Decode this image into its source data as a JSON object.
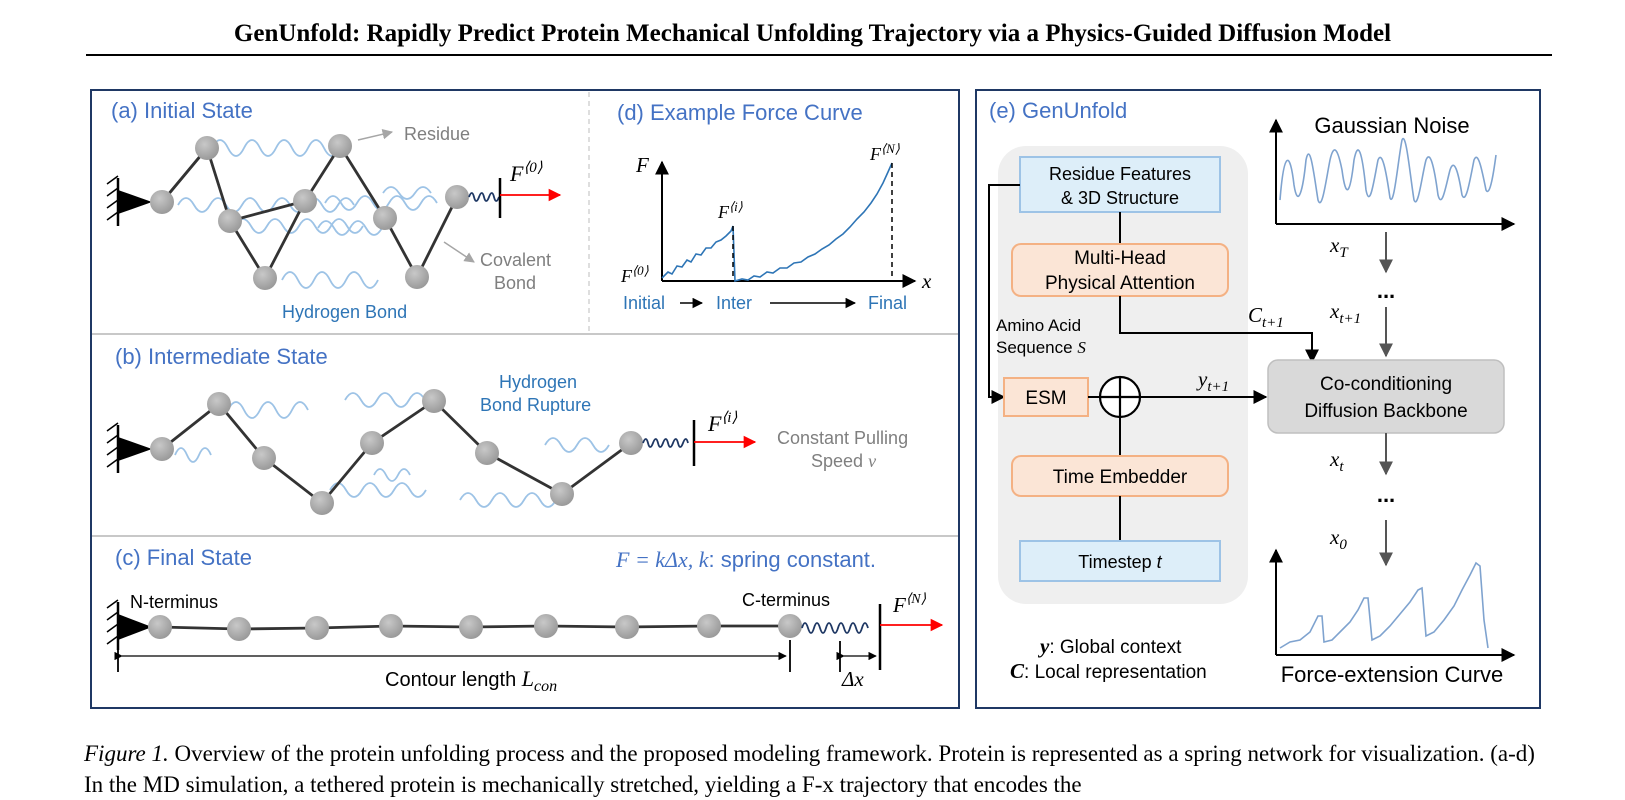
{
  "paper_title": "GenUnfold: Rapidly Predict Protein Mechanical Unfolding Trajectory via a Physics-Guided Diffusion Model",
  "colors": {
    "frame": "#1f3864",
    "panel_title": "#4472c4",
    "bead": "#a6a6a6",
    "wave": "#9dc3e6",
    "curve": "#2e75b6",
    "force_arrow": "#ff0000",
    "feature_box_fill": "#ddeef9",
    "feature_box_stroke": "#9dc3e6",
    "module_fill": "#fbe5d6",
    "module_stroke": "#f4b183",
    "backbone_fill": "#d9d9d9"
  },
  "panel_a": {
    "title": "(a) Initial State",
    "residue_label": "Residue",
    "covalent_label_1": "Covalent",
    "covalent_label_2": "Bond",
    "hbond_label": "Hydrogen Bond",
    "force_base": "F",
    "force_sup": "⟨0⟩"
  },
  "panel_b": {
    "title": "(b) Intermediate State",
    "rupture_label_1": "Hydrogen",
    "rupture_label_2": "Bond Rupture",
    "pulling_label_1": "Constant Pulling",
    "pulling_label_2": "Speed",
    "pulling_symbol": "v",
    "force_base": "F",
    "force_sup": "⟨i⟩"
  },
  "panel_c": {
    "title": "(c) Final State",
    "equation_lhs": "F = kΔx, k",
    "equation_rhs": ": spring constant.",
    "n_terminus": "N-terminus",
    "c_terminus": "C-terminus",
    "contour_label": "Contour length",
    "contour_symbol": "L",
    "contour_sub": "con",
    "delta_x": "Δx",
    "force_base": "F",
    "force_sup": "⟨N⟩"
  },
  "panel_d": {
    "title": "(d) Example Force Curve",
    "y_axis": "F",
    "x_axis": "x",
    "label_f0_base": "F",
    "label_f0_sup": "⟨0⟩",
    "label_fi_base": "F",
    "label_fi_sup": "⟨i⟩",
    "label_fn_base": "F",
    "label_fn_sup": "⟨N⟩",
    "stage_initial": "Initial",
    "stage_inter": "Inter",
    "stage_final": "Final"
  },
  "panel_e": {
    "title": "(e) GenUnfold",
    "residue_features_1": "Residue Features",
    "residue_features_2": "& 3D Structure",
    "attention_1": "Multi-Head",
    "attention_2": "Physical Attention",
    "amino_acid_1": "Amino Acid",
    "amino_acid_2": "Sequence",
    "amino_acid_symbol": "S",
    "esm": "ESM",
    "time_embedder": "Time Embedder",
    "timestep": "Timestep",
    "timestep_symbol": "t",
    "backbone_1": "Co-conditioning",
    "backbone_2": "Diffusion Backbone",
    "gaussian_noise": "Gaussian Noise",
    "force_extension": "Force-extension Curve",
    "x_T": "x",
    "x_T_sub": "T",
    "x_t1": "x",
    "x_t1_sub": "t+1",
    "x_t": "x",
    "x_t_sub": "t",
    "x_0": "x",
    "x_0_sub": "0",
    "c_t1": "C",
    "c_t1_sub": "t+1",
    "y_t1": "y",
    "y_t1_sub": "t+1",
    "ellipsis": "...",
    "legend_y_symbol": "y",
    "legend_y_text": ": Global context",
    "legend_c_symbol": "C",
    "legend_c_text": ": Local representation"
  },
  "caption": {
    "label": "Figure 1.",
    "text": " Overview of the protein unfolding process and the proposed modeling framework. Protein is represented as a spring network for visualization. (a-d) In the MD simulation, a tethered protein is mechanically stretched, yielding a F-x trajectory that encodes the"
  }
}
